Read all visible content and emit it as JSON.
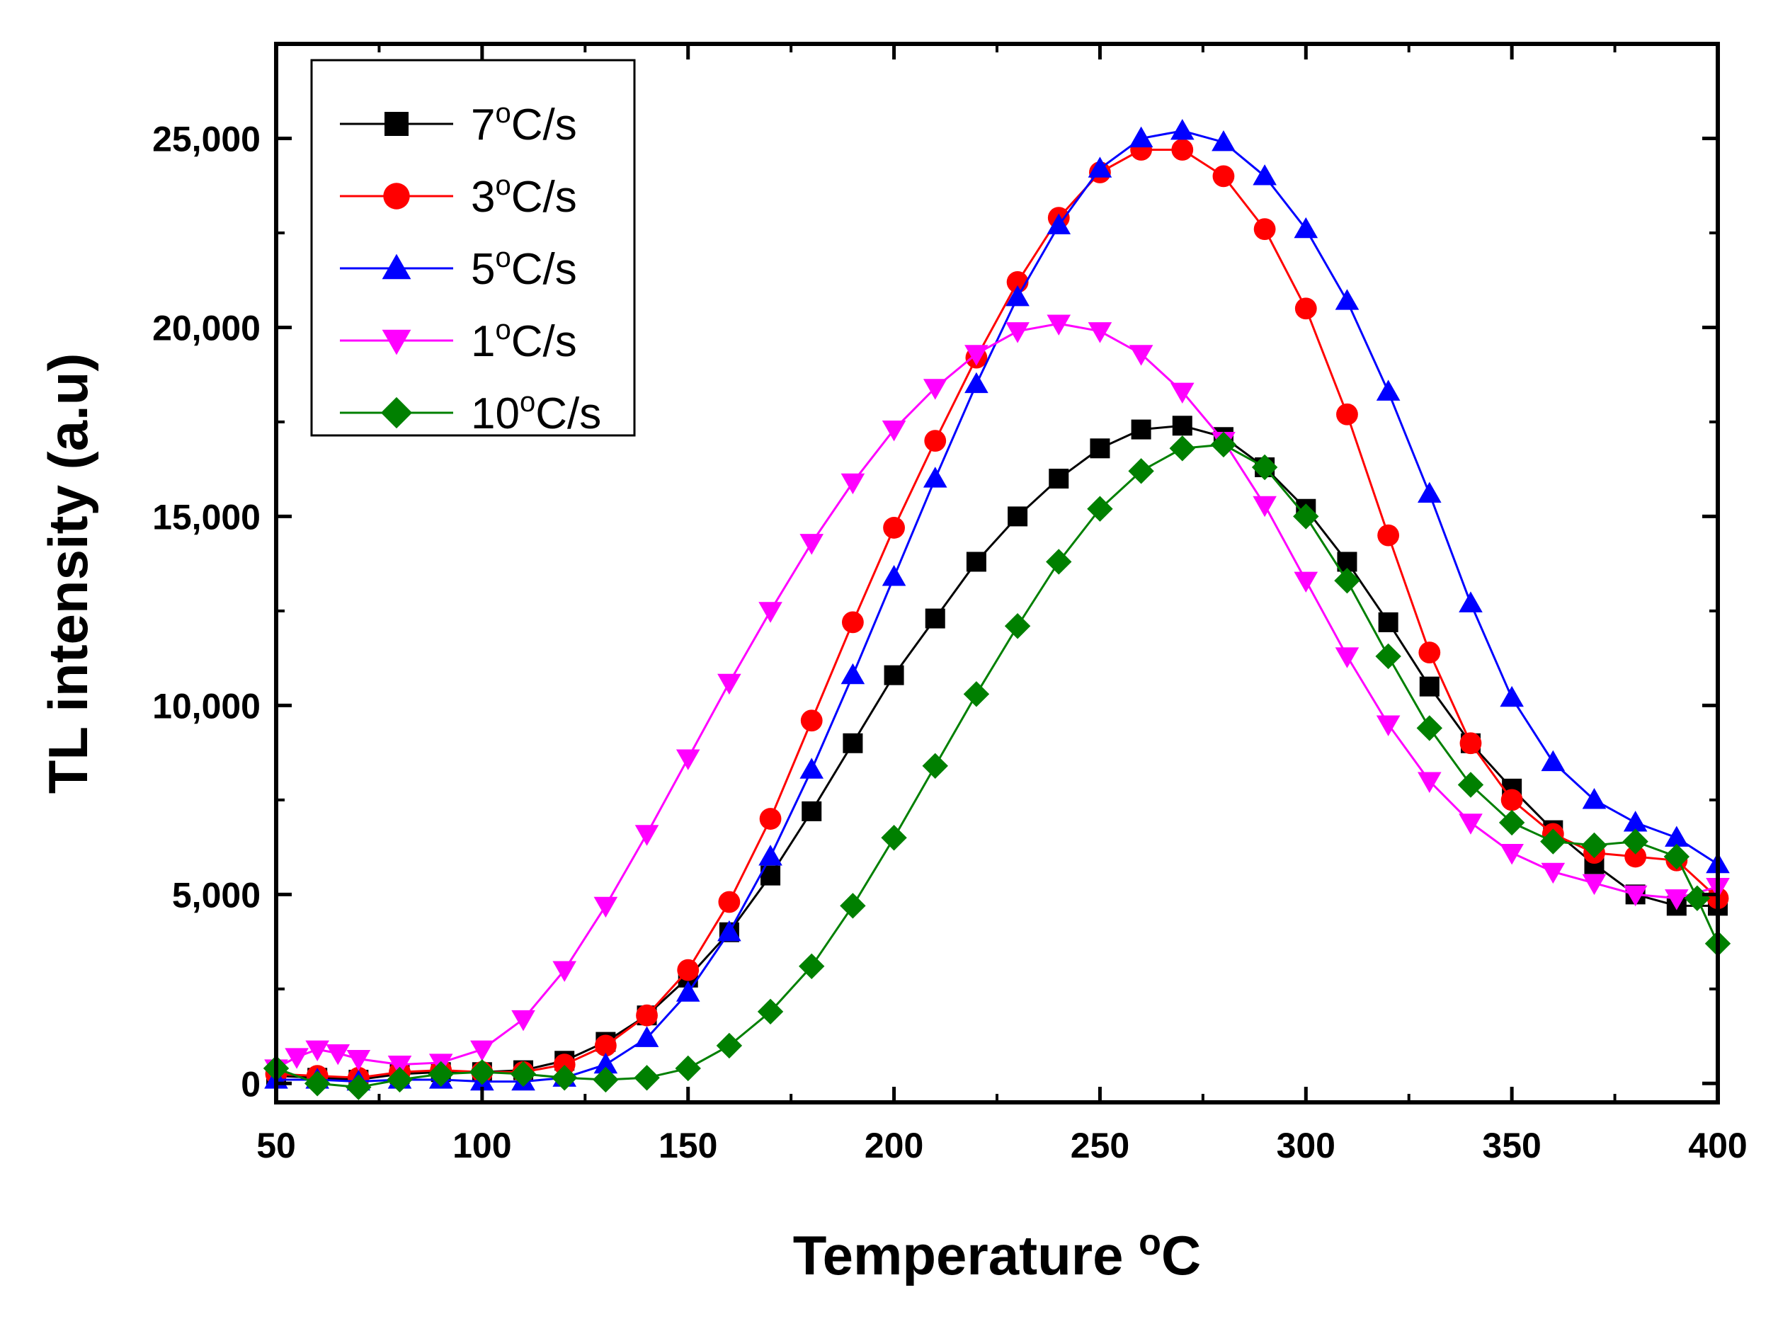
{
  "chart_data": {
    "type": "scatter",
    "title": "",
    "xlabel": "Temperature",
    "xlabel_unit_sup": "o",
    "xlabel_unit": "C",
    "ylabel": "TL intensity (a.u)",
    "xlim": [
      50,
      400
    ],
    "ylim": [
      -500,
      27500
    ],
    "x_ticks": [
      50,
      100,
      150,
      200,
      250,
      300,
      350,
      400
    ],
    "y_ticks": [
      0,
      5000,
      10000,
      15000,
      20000,
      25000
    ],
    "x_tick_labels": [
      "50",
      "100",
      "150",
      "200",
      "250",
      "300",
      "350",
      "400"
    ],
    "y_tick_labels": [
      "0",
      "5,000",
      "10,000",
      "15,000",
      "20,000",
      "25,000"
    ],
    "grid": false,
    "legend_position": "top-left",
    "series": [
      {
        "name": "7oC/s",
        "legend_num": "7",
        "legend_sup": "o",
        "legend_unit": "C/s",
        "color": "#000000",
        "marker": "square",
        "points": [
          [
            50,
            200
          ],
          [
            60,
            150
          ],
          [
            70,
            100
          ],
          [
            80,
            250
          ],
          [
            90,
            300
          ],
          [
            100,
            300
          ],
          [
            110,
            350
          ],
          [
            120,
            600
          ],
          [
            130,
            1100
          ],
          [
            140,
            1800
          ],
          [
            150,
            2800
          ],
          [
            160,
            4000
          ],
          [
            170,
            5500
          ],
          [
            180,
            7200
          ],
          [
            190,
            9000
          ],
          [
            200,
            10800
          ],
          [
            210,
            12300
          ],
          [
            220,
            13800
          ],
          [
            230,
            15000
          ],
          [
            240,
            16000
          ],
          [
            250,
            16800
          ],
          [
            260,
            17300
          ],
          [
            270,
            17400
          ],
          [
            280,
            17100
          ],
          [
            290,
            16300
          ],
          [
            300,
            15200
          ],
          [
            310,
            13800
          ],
          [
            320,
            12200
          ],
          [
            330,
            10500
          ],
          [
            340,
            9000
          ],
          [
            350,
            7800
          ],
          [
            360,
            6700
          ],
          [
            370,
            5800
          ],
          [
            380,
            5000
          ],
          [
            390,
            4700
          ],
          [
            400,
            4700
          ]
        ]
      },
      {
        "name": "3oC/s",
        "legend_num": "3",
        "legend_sup": "o",
        "legend_unit": "C/s",
        "color": "#ff0000",
        "marker": "circle",
        "points": [
          [
            50,
            250
          ],
          [
            60,
            200
          ],
          [
            70,
            150
          ],
          [
            80,
            300
          ],
          [
            90,
            350
          ],
          [
            100,
            300
          ],
          [
            110,
            300
          ],
          [
            120,
            500
          ],
          [
            130,
            1000
          ],
          [
            140,
            1800
          ],
          [
            150,
            3000
          ],
          [
            160,
            4800
          ],
          [
            170,
            7000
          ],
          [
            180,
            9600
          ],
          [
            190,
            12200
          ],
          [
            200,
            14700
          ],
          [
            210,
            17000
          ],
          [
            220,
            19200
          ],
          [
            230,
            21200
          ],
          [
            240,
            22900
          ],
          [
            250,
            24100
          ],
          [
            260,
            24700
          ],
          [
            270,
            24700
          ],
          [
            280,
            24000
          ],
          [
            290,
            22600
          ],
          [
            300,
            20500
          ],
          [
            310,
            17700
          ],
          [
            320,
            14500
          ],
          [
            330,
            11400
          ],
          [
            340,
            9000
          ],
          [
            350,
            7500
          ],
          [
            360,
            6600
          ],
          [
            370,
            6100
          ],
          [
            380,
            6000
          ],
          [
            390,
            5900
          ],
          [
            400,
            4900
          ]
        ]
      },
      {
        "name": "5oC/s",
        "legend_num": "5",
        "legend_sup": "o",
        "legend_unit": "C/s",
        "color": "#0000ff",
        "marker": "triangle-up",
        "points": [
          [
            50,
            100
          ],
          [
            60,
            100
          ],
          [
            70,
            50
          ],
          [
            80,
            100
          ],
          [
            90,
            100
          ],
          [
            100,
            50
          ],
          [
            110,
            50
          ],
          [
            120,
            150
          ],
          [
            130,
            500
          ],
          [
            140,
            1200
          ],
          [
            150,
            2400
          ],
          [
            160,
            4000
          ],
          [
            170,
            6000
          ],
          [
            180,
            8300
          ],
          [
            190,
            10800
          ],
          [
            200,
            13400
          ],
          [
            210,
            16000
          ],
          [
            220,
            18500
          ],
          [
            230,
            20800
          ],
          [
            240,
            22700
          ],
          [
            250,
            24200
          ],
          [
            260,
            25000
          ],
          [
            270,
            25200
          ],
          [
            280,
            24900
          ],
          [
            290,
            24000
          ],
          [
            300,
            22600
          ],
          [
            310,
            20700
          ],
          [
            320,
            18300
          ],
          [
            330,
            15600
          ],
          [
            340,
            12700
          ],
          [
            350,
            10200
          ],
          [
            360,
            8500
          ],
          [
            370,
            7500
          ],
          [
            380,
            6900
          ],
          [
            390,
            6500
          ],
          [
            400,
            5800
          ]
        ]
      },
      {
        "name": "1oC/s",
        "legend_num": "1",
        "legend_sup": "o",
        "legend_unit": "C/s",
        "color": "#ff00ff",
        "marker": "triangle-down",
        "points": [
          [
            50,
            400
          ],
          [
            55,
            700
          ],
          [
            60,
            900
          ],
          [
            65,
            800
          ],
          [
            70,
            650
          ],
          [
            80,
            500
          ],
          [
            90,
            550
          ],
          [
            100,
            900
          ],
          [
            110,
            1700
          ],
          [
            120,
            3000
          ],
          [
            130,
            4700
          ],
          [
            140,
            6600
          ],
          [
            150,
            8600
          ],
          [
            160,
            10600
          ],
          [
            170,
            12500
          ],
          [
            180,
            14300
          ],
          [
            190,
            15900
          ],
          [
            200,
            17300
          ],
          [
            210,
            18400
          ],
          [
            220,
            19300
          ],
          [
            230,
            19900
          ],
          [
            240,
            20100
          ],
          [
            250,
            19900
          ],
          [
            260,
            19300
          ],
          [
            270,
            18300
          ],
          [
            280,
            17000
          ],
          [
            290,
            15300
          ],
          [
            300,
            13300
          ],
          [
            310,
            11300
          ],
          [
            320,
            9500
          ],
          [
            330,
            8000
          ],
          [
            340,
            6900
          ],
          [
            350,
            6100
          ],
          [
            360,
            5600
          ],
          [
            370,
            5300
          ],
          [
            380,
            5000
          ],
          [
            390,
            4900
          ],
          [
            400,
            5200
          ]
        ]
      },
      {
        "name": "10oC/s",
        "legend_num": "10",
        "legend_sup": "o",
        "legend_unit": "C/s",
        "color": "#008000",
        "marker": "diamond",
        "points": [
          [
            50,
            400
          ],
          [
            60,
            0
          ],
          [
            70,
            -100
          ],
          [
            80,
            100
          ],
          [
            90,
            250
          ],
          [
            100,
            300
          ],
          [
            110,
            250
          ],
          [
            120,
            150
          ],
          [
            130,
            100
          ],
          [
            140,
            150
          ],
          [
            150,
            400
          ],
          [
            160,
            1000
          ],
          [
            170,
            1900
          ],
          [
            180,
            3100
          ],
          [
            190,
            4700
          ],
          [
            200,
            6500
          ],
          [
            210,
            8400
          ],
          [
            220,
            10300
          ],
          [
            230,
            12100
          ],
          [
            240,
            13800
          ],
          [
            250,
            15200
          ],
          [
            260,
            16200
          ],
          [
            270,
            16800
          ],
          [
            280,
            16900
          ],
          [
            290,
            16300
          ],
          [
            300,
            15000
          ],
          [
            310,
            13300
          ],
          [
            320,
            11300
          ],
          [
            330,
            9400
          ],
          [
            340,
            7900
          ],
          [
            350,
            6900
          ],
          [
            360,
            6400
          ],
          [
            370,
            6300
          ],
          [
            380,
            6400
          ],
          [
            390,
            6000
          ],
          [
            395,
            4900
          ],
          [
            400,
            3700
          ]
        ]
      }
    ]
  }
}
